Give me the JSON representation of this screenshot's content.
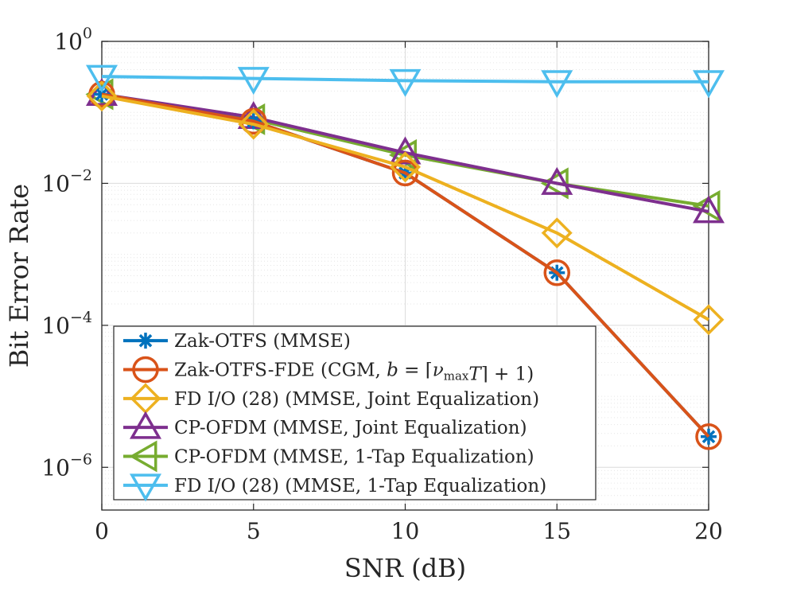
{
  "chart_data": {
    "type": "line",
    "title": "",
    "xlabel": "SNR (dB)",
    "ylabel": "Bit Error Rate",
    "yscale": "log",
    "xlim": [
      0,
      20
    ],
    "ylim": [
      2.5e-07,
      1
    ],
    "grid": true,
    "legend_position": "bottom-left",
    "x": [
      0,
      5,
      10,
      15,
      20
    ],
    "x_ticks": [
      0,
      5,
      10,
      15,
      20
    ],
    "x_tick_labels": [
      "0",
      "5",
      "10",
      "15",
      "20"
    ],
    "y_ticks": [
      1,
      0.01,
      0.0001,
      1e-06
    ],
    "y_tick_labels": [
      {
        "base": "10",
        "exp": "0"
      },
      {
        "base": "10",
        "exp": "−2"
      },
      {
        "base": "10",
        "exp": "−4"
      },
      {
        "base": "10",
        "exp": "−6"
      }
    ],
    "series": [
      {
        "name": "Zak-OTFS (MMSE)",
        "legend_segments": [
          {
            "t": "Zak-OTFS (MMSE)"
          }
        ],
        "color": "#0072BD",
        "marker": "asterisk",
        "values": [
          0.18,
          0.075,
          0.014,
          0.00055,
          2.7e-06
        ]
      },
      {
        "name": "Zak-OTFS-FDE (CGM, b = ⌈νmaxT⌉ + 1)",
        "legend_segments": [
          {
            "t": "Zak-OTFS-FDE (CGM, "
          },
          {
            "t": "b",
            "i": true
          },
          {
            "t": " = ⌈"
          },
          {
            "t": "ν",
            "i": true
          },
          {
            "t": "max",
            "sub": true
          },
          {
            "t": "T",
            "i": true
          },
          {
            "t": "⌉ + 1)"
          }
        ],
        "color": "#D95319",
        "marker": "circle",
        "values": [
          0.18,
          0.075,
          0.014,
          0.00055,
          2.7e-06
        ]
      },
      {
        "name": "FD I/O (28) (MMSE, Joint Equalization)",
        "legend_segments": [
          {
            "t": "FD I/O (28) (MMSE, Joint Equalization)"
          }
        ],
        "color": "#EDB120",
        "marker": "diamond",
        "values": [
          0.17,
          0.068,
          0.017,
          0.002,
          0.00012
        ]
      },
      {
        "name": "CP-OFDM (MMSE, Joint Equalization)",
        "legend_segments": [
          {
            "t": "CP-OFDM (MMSE, Joint Equalization)"
          }
        ],
        "color": "#7E2F8E",
        "marker": "triangle-up",
        "values": [
          0.18,
          0.085,
          0.027,
          0.01,
          0.004
        ]
      },
      {
        "name": "CP-OFDM (MMSE, 1-Tap Equalization)",
        "legend_segments": [
          {
            "t": "CP-OFDM (MMSE, 1-Tap Equalization)"
          }
        ],
        "color": "#77AC30",
        "marker": "triangle-left",
        "values": [
          0.18,
          0.08,
          0.025,
          0.01,
          0.0048
        ]
      },
      {
        "name": "FD I/O (28) (MMSE, 1-Tap Equalization)",
        "legend_segments": [
          {
            "t": "FD I/O (28) (MMSE, 1-Tap Equalization)"
          }
        ],
        "color": "#4DBEEE",
        "marker": "triangle-down",
        "values": [
          0.32,
          0.3,
          0.28,
          0.27,
          0.27
        ]
      }
    ]
  }
}
